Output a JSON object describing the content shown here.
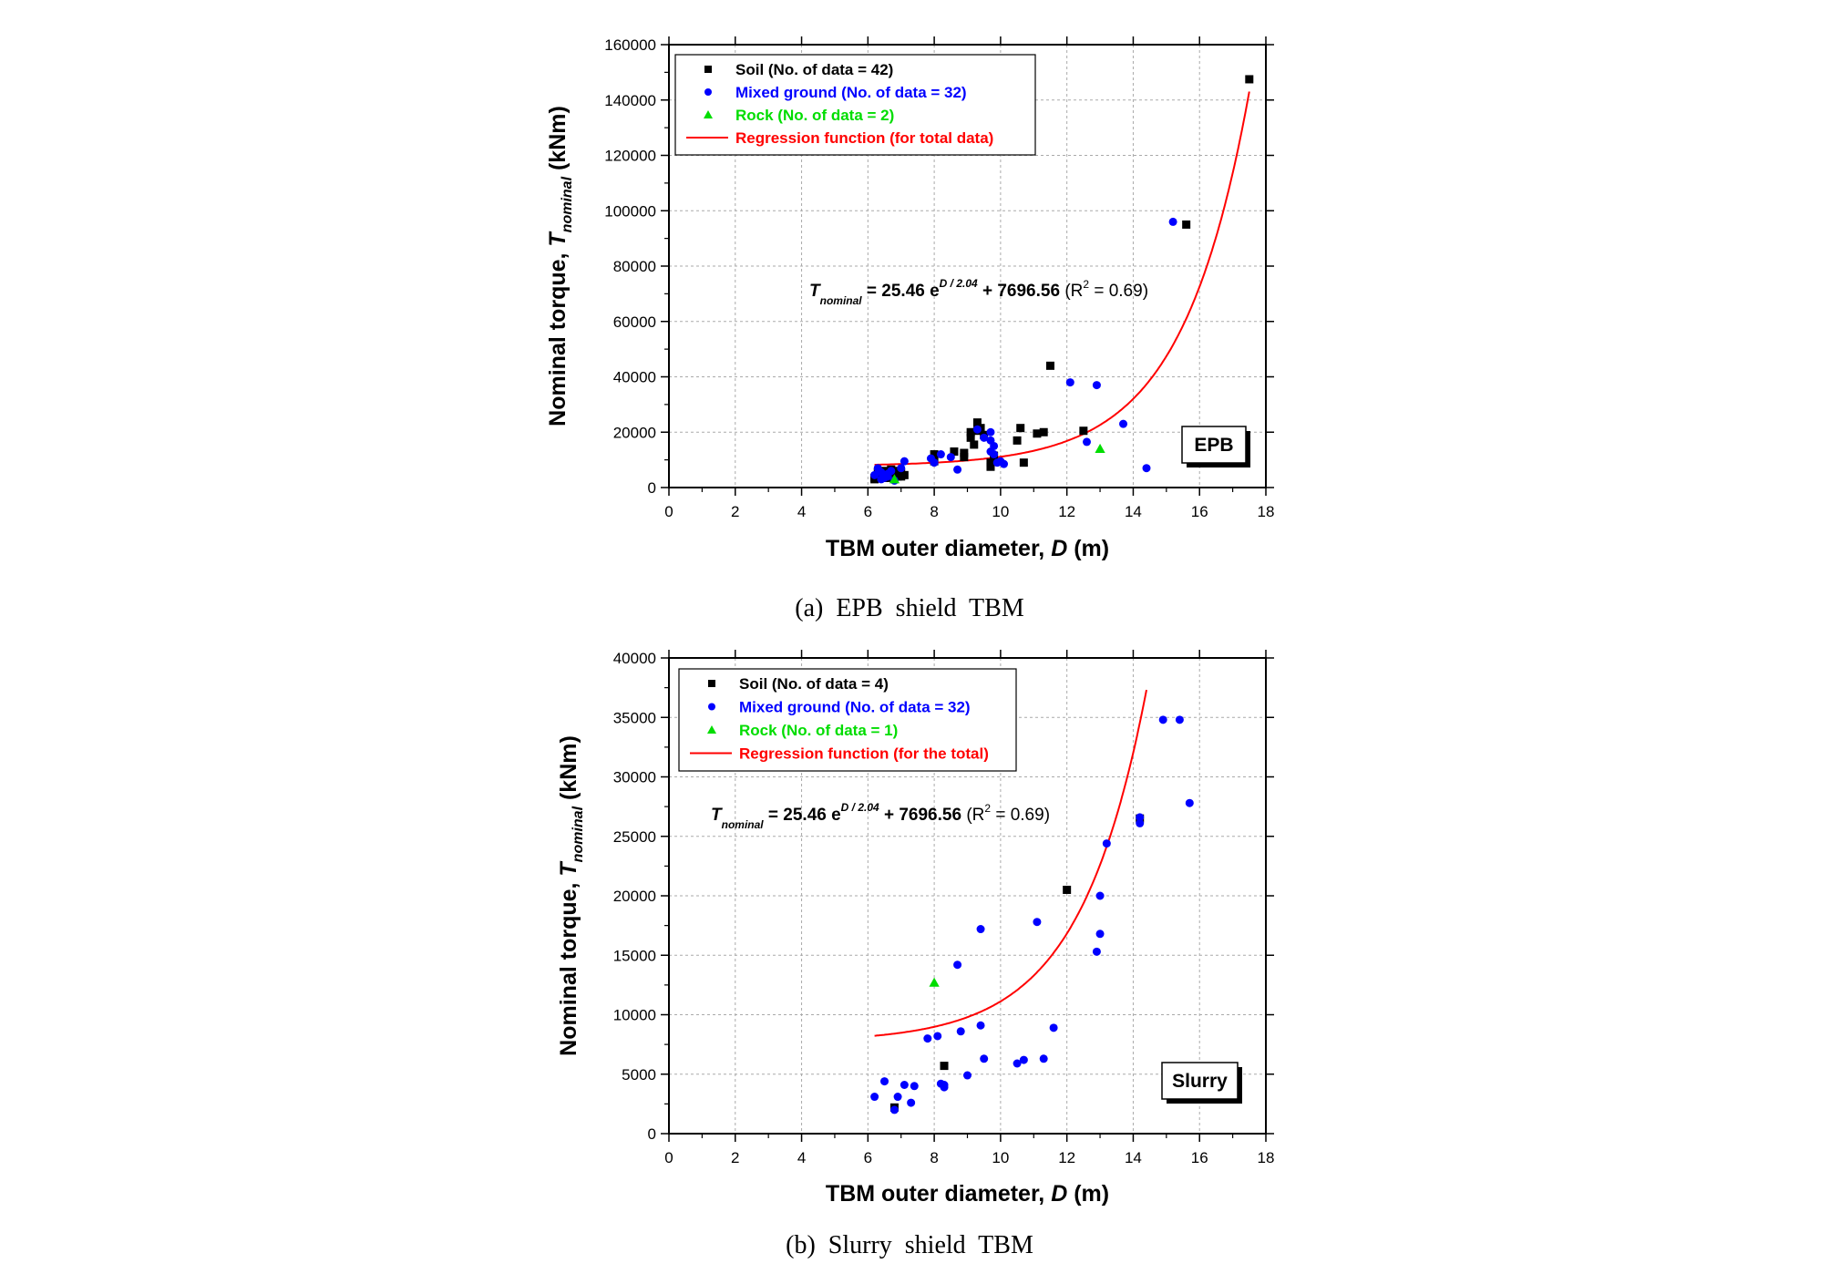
{
  "chart_data": [
    {
      "type": "scatter",
      "caption": "(a)  EPB  shield  TBM",
      "ground_label": "EPB",
      "xlabel": "TBM outer diameter, D (m)",
      "ylabel": "Nominal torque, Tnominal (kNm)",
      "xlim": [
        0,
        18
      ],
      "ylim": [
        0,
        160000
      ],
      "xticks": [
        "0",
        "2",
        "4",
        "6",
        "8",
        "10",
        "12",
        "14",
        "16",
        "18"
      ],
      "yticks": [
        "0",
        "20000",
        "40000",
        "60000",
        "80000",
        "100000",
        "120000",
        "140000",
        "160000"
      ],
      "grid": true,
      "legend_position": "top-left",
      "equation": "T_nominal = 25.46 e^(D / 2.04) + 7696.56 (R^2 = 0.69)",
      "regression": {
        "name": "Regression function (for total data)",
        "color": "#ff0000",
        "a": 25.46,
        "b": 2.04,
        "c": 7696.56,
        "x_range": [
          6.2,
          17.5
        ]
      },
      "series": [
        {
          "name": "Soil (No. of data = 42)",
          "marker": "square",
          "color": "#000000",
          "points": [
            [
              6.2,
              3500
            ],
            [
              6.3,
              4500
            ],
            [
              6.3,
              5500
            ],
            [
              6.4,
              4000
            ],
            [
              6.5,
              6000
            ],
            [
              6.5,
              3500
            ],
            [
              6.6,
              5000
            ],
            [
              6.7,
              4500
            ],
            [
              6.7,
              6500
            ],
            [
              6.8,
              5500
            ],
            [
              6.9,
              6000
            ],
            [
              6.9,
              4000
            ],
            [
              7.0,
              5500
            ],
            [
              7.1,
              4500
            ],
            [
              8.0,
              12000
            ],
            [
              8.0,
              9500
            ],
            [
              8.6,
              13000
            ],
            [
              8.9,
              11000
            ],
            [
              8.9,
              12500
            ],
            [
              9.1,
              18000
            ],
            [
              9.1,
              20000
            ],
            [
              9.2,
              15500
            ],
            [
              9.3,
              23500
            ],
            [
              9.3,
              20500
            ],
            [
              9.4,
              21500
            ],
            [
              9.5,
              19000
            ],
            [
              9.7,
              9000
            ],
            [
              9.7,
              7500
            ],
            [
              9.8,
              11500
            ],
            [
              10.5,
              17000
            ],
            [
              10.6,
              21500
            ],
            [
              10.7,
              9000
            ],
            [
              11.1,
              19500
            ],
            [
              11.3,
              20000
            ],
            [
              11.5,
              44000
            ],
            [
              12.5,
              20500
            ],
            [
              15.6,
              95000
            ],
            [
              17.5,
              147500
            ],
            [
              6.2,
              3000
            ],
            [
              6.6,
              3500
            ],
            [
              7.0,
              4000
            ],
            [
              6.4,
              5000
            ]
          ]
        },
        {
          "name": "Mixed ground (No. of data = 32)",
          "marker": "circle",
          "color": "#0000ff",
          "points": [
            [
              6.2,
              4500
            ],
            [
              6.3,
              7000
            ],
            [
              6.4,
              5500
            ],
            [
              6.5,
              3500
            ],
            [
              6.6,
              4000
            ],
            [
              6.7,
              6000
            ],
            [
              6.8,
              2500
            ],
            [
              7.1,
              9500
            ],
            [
              7.9,
              10500
            ],
            [
              8.0,
              9000
            ],
            [
              8.2,
              12000
            ],
            [
              8.7,
              6500
            ],
            [
              9.3,
              21000
            ],
            [
              9.7,
              20000
            ],
            [
              9.7,
              17000
            ],
            [
              9.7,
              13000
            ],
            [
              9.8,
              15000
            ],
            [
              9.8,
              12000
            ],
            [
              9.9,
              9000
            ],
            [
              10.1,
              8500
            ],
            [
              12.1,
              38000
            ],
            [
              12.6,
              16500
            ],
            [
              12.9,
              37000
            ],
            [
              13.7,
              23000
            ],
            [
              14.4,
              7000
            ],
            [
              15.2,
              96000
            ],
            [
              6.6,
              5000
            ],
            [
              6.4,
              3000
            ],
            [
              8.5,
              11000
            ],
            [
              9.5,
              18000
            ],
            [
              10.0,
              9500
            ],
            [
              7.0,
              7000
            ]
          ]
        },
        {
          "name": "Rock (No. of data = 2)",
          "marker": "triangle",
          "color": "#00dd00",
          "points": [
            [
              6.8,
              3000
            ],
            [
              13.0,
              14000
            ]
          ]
        }
      ]
    },
    {
      "type": "scatter",
      "caption": "(b)  Slurry  shield  TBM",
      "ground_label": "Slurry",
      "xlabel": "TBM outer diameter, D (m)",
      "ylabel": "Nominal torque, Tnominal (kNm)",
      "xlim": [
        0,
        18
      ],
      "ylim": [
        0,
        40000
      ],
      "xticks": [
        "0",
        "2",
        "4",
        "6",
        "8",
        "10",
        "12",
        "14",
        "16",
        "18"
      ],
      "yticks": [
        "0",
        "5000",
        "10000",
        "15000",
        "20000",
        "25000",
        "30000",
        "35000",
        "40000"
      ],
      "grid": true,
      "legend_position": "top-left",
      "equation": "T_nominal = 25.46 e^(D / 2.04) + 7696.56 (R^2 = 0.69)",
      "regression": {
        "name": "Regression function (for the total)",
        "color": "#ff0000",
        "a": 25.46,
        "b": 2.04,
        "c": 7696.56,
        "x_range": [
          6.2,
          14.4
        ]
      },
      "series": [
        {
          "name": "Soil (No. of data = 4)",
          "marker": "square",
          "color": "#000000",
          "points": [
            [
              6.8,
              2200
            ],
            [
              8.3,
              5700
            ],
            [
              12.0,
              20500
            ],
            [
              14.2,
              26500
            ]
          ]
        },
        {
          "name": "Mixed ground (No. of data = 32)",
          "marker": "circle",
          "color": "#0000ff",
          "points": [
            [
              6.2,
              3100
            ],
            [
              6.5,
              4400
            ],
            [
              6.8,
              2000
            ],
            [
              6.9,
              3100
            ],
            [
              7.1,
              4100
            ],
            [
              7.3,
              2600
            ],
            [
              7.4,
              4000
            ],
            [
              7.8,
              8000
            ],
            [
              8.1,
              8200
            ],
            [
              8.3,
              4100
            ],
            [
              8.3,
              3900
            ],
            [
              8.7,
              14200
            ],
            [
              8.8,
              8600
            ],
            [
              9.0,
              4900
            ],
            [
              9.4,
              17200
            ],
            [
              9.4,
              9100
            ],
            [
              9.5,
              6300
            ],
            [
              10.5,
              5900
            ],
            [
              10.7,
              6200
            ],
            [
              11.1,
              17800
            ],
            [
              11.3,
              6300
            ],
            [
              11.6,
              8900
            ],
            [
              13.0,
              20000
            ],
            [
              13.0,
              16800
            ],
            [
              12.9,
              15300
            ],
            [
              13.2,
              24400
            ],
            [
              14.2,
              26100
            ],
            [
              14.2,
              26600
            ],
            [
              14.9,
              34800
            ],
            [
              15.4,
              34800
            ],
            [
              15.7,
              27800
            ],
            [
              8.2,
              4200
            ]
          ]
        },
        {
          "name": "Rock (No. of data = 1)",
          "marker": "triangle",
          "color": "#00dd00",
          "points": [
            [
              8.0,
              12700
            ]
          ]
        }
      ]
    }
  ]
}
